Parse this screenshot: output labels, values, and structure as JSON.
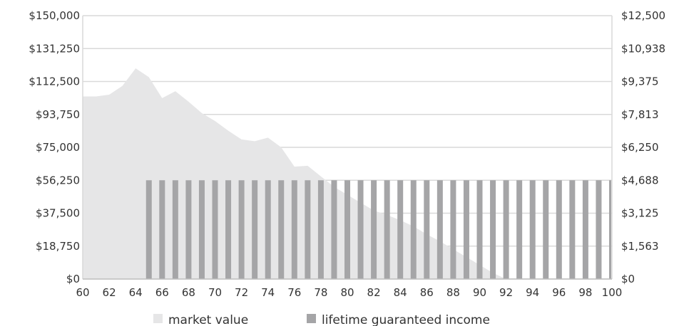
{
  "chart_data": {
    "type": "bar",
    "title": "",
    "xlabel": "",
    "ylabel": "",
    "x": [
      60,
      61,
      62,
      63,
      64,
      65,
      66,
      67,
      68,
      69,
      70,
      71,
      72,
      73,
      74,
      75,
      76,
      77,
      78,
      79,
      80,
      81,
      82,
      83,
      84,
      85,
      86,
      87,
      88,
      89,
      90,
      91,
      92,
      93,
      94,
      95,
      96,
      97,
      98,
      99,
      100
    ],
    "x_tick_labels": [
      "60",
      "62",
      "64",
      "66",
      "68",
      "70",
      "72",
      "74",
      "76",
      "78",
      "80",
      "82",
      "84",
      "86",
      "88",
      "90",
      "92",
      "94",
      "96",
      "98",
      "100"
    ],
    "left_axis": {
      "ylim": [
        0,
        150000
      ],
      "tick_labels": [
        "$0",
        "$18,750",
        "$37,500",
        "$56,250",
        "$75,000",
        "$93,750",
        "$112,500",
        "$131,250",
        "$150,000"
      ]
    },
    "right_axis": {
      "ylim": [
        0,
        12500
      ],
      "tick_labels": [
        "$0",
        "$1,563",
        "$3,125",
        "$4,688",
        "$6,250",
        "$7,813",
        "$9,375",
        "$10,938",
        "$12,500"
      ]
    },
    "grid": true,
    "legend_position": "bottom",
    "series": [
      {
        "name": "market value",
        "type": "area",
        "axis": "left",
        "color": "#e6e6e7",
        "values": [
          104000,
          104000,
          105000,
          110000,
          120000,
          115000,
          103000,
          107000,
          101000,
          94500,
          90000,
          84500,
          79500,
          78500,
          80500,
          75000,
          64000,
          64500,
          58500,
          52500,
          48000,
          43500,
          39000,
          36500,
          33500,
          30000,
          25500,
          21500,
          17000,
          12500,
          8000,
          3500,
          0,
          0,
          0,
          0,
          0,
          0,
          0,
          0,
          0
        ]
      },
      {
        "name": "lifetime guaranteed income",
        "type": "bar",
        "axis": "right",
        "color": "#a5a5a7",
        "values": [
          0,
          0,
          0,
          0,
          0,
          4688,
          4688,
          4688,
          4688,
          4688,
          4688,
          4688,
          4688,
          4688,
          4688,
          4688,
          4688,
          4688,
          4688,
          4688,
          4688,
          4688,
          4688,
          4688,
          4688,
          4688,
          4688,
          4688,
          4688,
          4688,
          4688,
          4688,
          4688,
          4688,
          4688,
          4688,
          4688,
          4688,
          4688,
          4688,
          4688
        ]
      }
    ]
  }
}
